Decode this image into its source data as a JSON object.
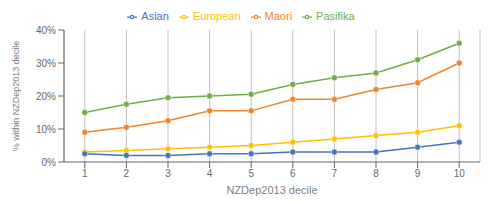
{
  "chart_data": {
    "type": "line",
    "xlabel": "NZDep2013 decile",
    "ylabel": "% within NZDep2013 decile",
    "x": [
      1,
      2,
      3,
      4,
      5,
      6,
      7,
      8,
      9,
      10
    ],
    "series": [
      {
        "name": "Maori",
        "color": "#f4822a",
        "values": [
          9,
          10.5,
          12.5,
          15.5,
          15.5,
          19,
          19,
          22,
          24,
          30
        ]
      },
      {
        "name": "Pasifika",
        "color": "#70ad47",
        "values": [
          15,
          17.5,
          19.5,
          20,
          20.5,
          23.5,
          25.5,
          27,
          31,
          36
        ]
      },
      {
        "name": "European",
        "color": "#ffc000",
        "values": [
          3,
          3.5,
          4,
          4.5,
          5,
          6,
          7,
          8,
          9,
          11
        ]
      },
      {
        "name": "Asian",
        "color": "#4472c4",
        "values": [
          2.5,
          2,
          2,
          2.5,
          2.5,
          3,
          3,
          3,
          4.5,
          6
        ]
      }
    ],
    "xlim": [
      0.5,
      10.5
    ],
    "xticks": [
      1,
      2,
      3,
      4,
      5,
      6,
      7,
      8,
      9,
      10
    ],
    "ylim": [
      0,
      40
    ],
    "yticks": [
      {
        "value": 0,
        "label": "0%"
      },
      {
        "value": 10,
        "label": "10%"
      },
      {
        "value": 20,
        "label": "20%"
      },
      {
        "value": 30,
        "label": "30%"
      },
      {
        "value": 40,
        "label": "40%"
      }
    ],
    "grid": "x",
    "legend": "top",
    "marker": "circle"
  }
}
